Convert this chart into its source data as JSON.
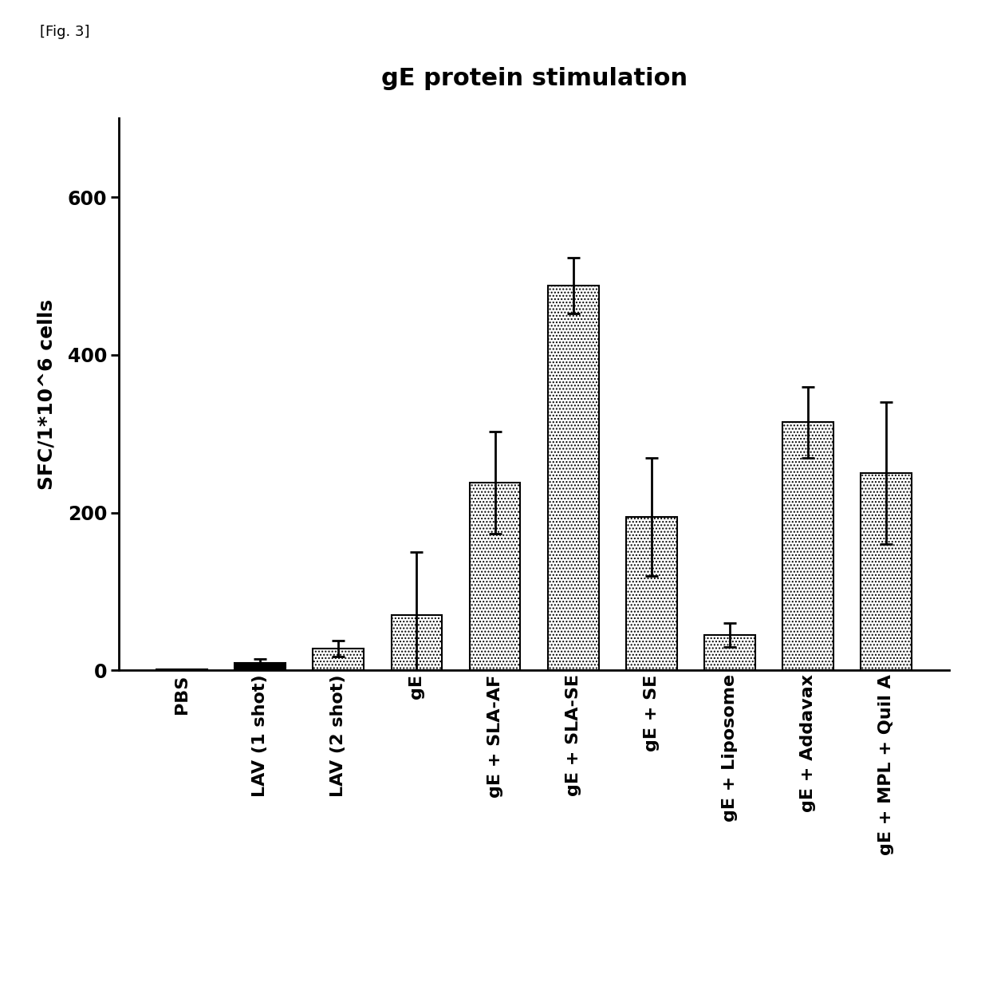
{
  "title": "gE protein stimulation",
  "ylabel": "SFC/1*10^6 cells",
  "categories": [
    "PBS",
    "LAV (1 shot)",
    "LAV (2 shot)",
    "gE",
    "gE + SLA-AF",
    "gE + SLA-SE",
    "gE + SE",
    "gE + Liposome",
    "gE + Addavax",
    "gE + MPL + Quil A"
  ],
  "values": [
    1,
    10,
    28,
    70,
    238,
    488,
    195,
    45,
    315,
    250
  ],
  "errors": [
    1,
    5,
    10,
    80,
    65,
    35,
    75,
    15,
    45,
    90
  ],
  "solid_bars": [
    0,
    1
  ],
  "ylim": [
    0,
    700
  ],
  "yticks": [
    0,
    200,
    400,
    600
  ],
  "figsize": [
    12.4,
    12.36
  ],
  "dpi": 100,
  "title_fontsize": 22,
  "label_fontsize": 17,
  "tick_fontsize": 15,
  "bar_width": 0.65,
  "fig_label": "[Fig. 3]"
}
